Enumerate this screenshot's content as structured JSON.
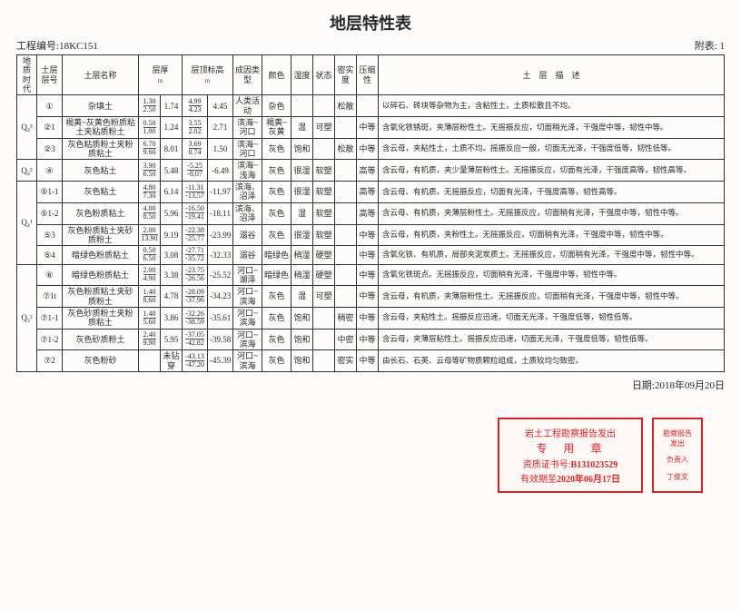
{
  "title": "地层特性表",
  "project_label": "工程编号:",
  "project_no": "18KC151",
  "appendix_label": "附表:",
  "appendix_no": "1",
  "date_label": "日期:",
  "date": "2018年09月20日",
  "headers": {
    "era": "地质时代",
    "layer_no": "土层层号",
    "layer_name": "土层名称",
    "thickness": "层厚",
    "thickness_unit": "m",
    "elev": "层顶标高",
    "elev_unit": "m",
    "genesis": "成因类型",
    "color": "颜色",
    "humidity": "湿度",
    "state": "状态",
    "density": "密实度",
    "compress": "压缩性",
    "desc": "土　层　描　述"
  },
  "eras": [
    {
      "label": "Q₄³",
      "rows": [
        {
          "no": "①",
          "name": "杂填土",
          "thick_top": "1.30",
          "thick_bot": "2.50",
          "thick_avg": "1.74",
          "elev_top": "4.99",
          "elev_bot": "4.23",
          "elev_avg": "4.45",
          "gen": "人类活动",
          "color": "杂色",
          "humid": "",
          "state": "",
          "dense": "松散",
          "comp": "",
          "desc": "以碎石、砖块等杂物为主，含粘性土，土质松散且不均。"
        },
        {
          "no": "②1",
          "name": "褐黄~灰黄色粉质粘土夹粘质粉土",
          "thick_top": "0.50",
          "thick_bot": "1.90",
          "thick_avg": "1.24",
          "elev_top": "3.55",
          "elev_bot": "2.02",
          "elev_avg": "2.71",
          "gen": "滨海~河口",
          "color": "褐黄~灰黄",
          "humid": "湿",
          "state": "可塑",
          "dense": "",
          "comp": "中等",
          "desc": "含氧化铁锈斑，夹薄层粉性土。无摇振反应，切面稍光泽，干强度中等，韧性中等。"
        },
        {
          "no": "②3",
          "name": "灰色粘质粉土夹粉质粘土",
          "thick_top": "6.70",
          "thick_bot": "9.60",
          "thick_avg": "8.01",
          "elev_top": "3.69",
          "elev_bot": "0.74",
          "elev_avg": "1.50",
          "gen": "滨海~河口",
          "color": "灰色",
          "humid": "饱和",
          "state": "",
          "dense": "松散",
          "comp": "中等",
          "desc": "含云母，夹粘性土，土质不均。摇振反应一般，切面无光泽，干强度低等，韧性低等。"
        }
      ]
    },
    {
      "label": "Q₄²",
      "rows": [
        {
          "no": "④",
          "name": "灰色粘土",
          "thick_top": "3.90",
          "thick_bot": "6.50",
          "thick_avg": "5.48",
          "elev_top": "-5.25",
          "elev_bot": "-8.07",
          "elev_avg": "-6.49",
          "gen": "滨海~浅海",
          "color": "灰色",
          "humid": "很湿",
          "state": "软塑",
          "dense": "",
          "comp": "高等",
          "desc": "含云母，有机质，夹少量薄层粉性土。无摇振反应，切面有光泽，干强度高等，韧性高等。"
        }
      ]
    },
    {
      "label": "Q₄¹",
      "rows": [
        {
          "no": "⑤1-1",
          "name": "灰色粘土",
          "thick_top": "4.80",
          "thick_bot": "7.30",
          "thick_avg": "6.14",
          "elev_top": "-11.31",
          "elev_bot": "-13.57",
          "elev_avg": "-11.97",
          "gen": "滨海、沼泽",
          "color": "灰色",
          "humid": "很湿",
          "state": "软塑",
          "dense": "",
          "comp": "高等",
          "desc": "含云母、有机质。无摇振反应，切面有光泽，干强度高等，韧性高等。"
        },
        {
          "no": "⑤1-2",
          "name": "灰色粉质粘土",
          "thick_top": "4.00",
          "thick_bot": "8.50",
          "thick_avg": "5.96",
          "elev_top": "-16.50",
          "elev_bot": "-19.41",
          "elev_avg": "-18.11",
          "gen": "滨海、沼泽",
          "color": "灰色",
          "humid": "湿",
          "state": "软塑",
          "dense": "",
          "comp": "高等",
          "desc": "含云母、有机质，夹薄层粉性土。无摇振反应，切面稍有光泽，干强度中等，韧性中等。"
        },
        {
          "no": "⑤3",
          "name": "灰色粉质粘土夹砂质粉土",
          "thick_top": "2.00",
          "thick_bot": "13.90",
          "thick_avg": "9.19",
          "elev_top": "-22.38",
          "elev_bot": "-25.77",
          "elev_avg": "-23.99",
          "gen": "溺谷",
          "color": "灰色",
          "humid": "很湿",
          "state": "软塑",
          "dense": "",
          "comp": "中等",
          "desc": "含云母，有机质，夹粉性土。无摇振反应，切面稍有光泽，干强度中等，韧性中等。"
        },
        {
          "no": "⑤4",
          "name": "暗绿色粉质粘土",
          "thick_top": "0.50",
          "thick_bot": "6.50",
          "thick_avg": "3.08",
          "elev_top": "-27.71",
          "elev_bot": "-35.72",
          "elev_avg": "-32.33",
          "gen": "溺谷",
          "color": "暗绿色",
          "humid": "稍湿",
          "state": "硬塑",
          "dense": "",
          "comp": "中等",
          "desc": "含氧化铁、有机质，局部夹泥炭质土。无摇振反应，切面稍有光泽，干强度中等，韧性中等。"
        }
      ]
    },
    {
      "label": "Q₃²",
      "rows": [
        {
          "no": "⑥",
          "name": "暗绿色粉质粘土",
          "thick_top": "2.00",
          "thick_bot": "4.90",
          "thick_avg": "3.38",
          "elev_top": "-23.75",
          "elev_bot": "-26.56",
          "elev_avg": "-25.52",
          "gen": "河口~湖泽",
          "color": "暗绿色",
          "humid": "稍湿",
          "state": "硬塑",
          "dense": "",
          "comp": "中等",
          "desc": "含氧化铁斑点。无摇振反应，切面稍有光泽，干强度中等，韧性中等。"
        },
        {
          "no": "⑦1t",
          "name": "灰色粉质粘土夹砂质粉土",
          "thick_top": "1.40",
          "thick_bot": "8.60",
          "thick_avg": "4.78",
          "elev_top": "-28.09",
          "elev_bot": "-37.96",
          "elev_avg": "-34.23",
          "gen": "河口~滨海",
          "color": "灰色",
          "humid": "湿",
          "state": "可塑",
          "dense": "",
          "comp": "中等",
          "desc": "含云母，有机质，夹薄层粉性土。无摇振反应，切面稍有光泽，干强度中等，韧性中等。"
        },
        {
          "no": "⑦1-1",
          "name": "灰色砂质粉土夹粉质粘土",
          "thick_top": "1.40",
          "thick_bot": "5.60",
          "thick_avg": "3.86",
          "elev_top": "-32.26",
          "elev_bot": "-38.59",
          "elev_avg": "-35.61",
          "gen": "河口~滨海",
          "color": "灰色",
          "humid": "饱和",
          "state": "",
          "dense": "稍密",
          "comp": "中等",
          "desc": "含云母，夹粘性土。摇振反应迅速，切面无光泽，干强度低等，韧性低等。"
        },
        {
          "no": "⑦1-2",
          "name": "灰色砂质粉土",
          "thick_top": "2.40",
          "thick_bot": "9.90",
          "thick_avg": "5.95",
          "elev_top": "-37.05",
          "elev_bot": "-42.82",
          "elev_avg": "-39.58",
          "gen": "河口~滨海",
          "color": "灰色",
          "humid": "饱和",
          "state": "",
          "dense": "中密",
          "comp": "中等",
          "desc": "含云母，夹薄层粘性土。摇振反应迅速，切面无光泽，干强度低等，韧性低等。"
        },
        {
          "no": "⑦2",
          "name": "灰色粉砂",
          "thick_top": "",
          "thick_bot": "",
          "thick_avg": "未钻穿",
          "elev_top": "-43.13",
          "elev_bot": "-47.20",
          "elev_avg": "-45.39",
          "gen": "河口~滨海",
          "color": "灰色",
          "humid": "饱和",
          "state": "",
          "dense": "密实",
          "comp": "中等",
          "desc": "由长石、石英、云母等矿物质颗粒组成，土质较均匀致密。"
        }
      ]
    }
  ],
  "stamp": {
    "line1": "岩土工程勘察报告发出",
    "line2": "专　用　章",
    "cert_label": "资质证书号:",
    "cert": "B131023529",
    "valid_label": "有效期至",
    "valid_date": "2020年06月17日",
    "side": "勘察报告发出",
    "side_person": "负责人",
    "side_name": "丁俊文"
  }
}
